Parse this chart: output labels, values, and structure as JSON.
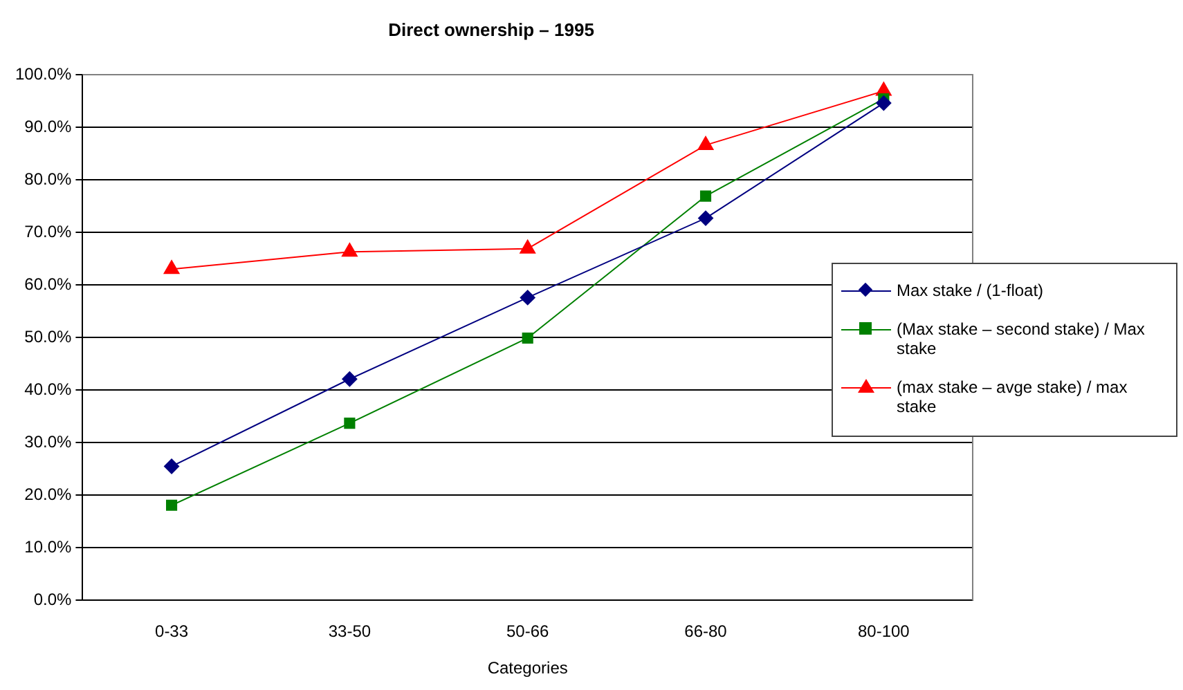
{
  "chart_data": {
    "type": "line",
    "title": "Direct ownership – 1995",
    "xlabel": "Categories",
    "categories": [
      "0-33",
      "33-50",
      "50-66",
      "66-80",
      "80-100"
    ],
    "series": [
      {
        "name": "Max stake / (1-float)",
        "color": "#000080",
        "marker": "diamond",
        "values": [
          25.5,
          42.1,
          57.6,
          72.7,
          94.6
        ]
      },
      {
        "name": "(Max stake – second stake) / Max stake",
        "color": "#008000",
        "marker": "square",
        "values": [
          18.1,
          33.7,
          49.9,
          76.9,
          95.4
        ]
      },
      {
        "name": "(max stake – avge stake) / max stake",
        "color": "#ff0000",
        "marker": "triangle",
        "values": [
          63.0,
          66.3,
          66.9,
          86.6,
          96.9
        ]
      }
    ],
    "ylim": [
      0,
      100
    ],
    "yticks": [
      {
        "value": 0,
        "label": "0.0%"
      },
      {
        "value": 10,
        "label": "10.0%"
      },
      {
        "value": 20,
        "label": "20.0%"
      },
      {
        "value": 30,
        "label": "30.0%"
      },
      {
        "value": 40,
        "label": "40.0%"
      },
      {
        "value": 50,
        "label": "50.0%"
      },
      {
        "value": 60,
        "label": "60.0%"
      },
      {
        "value": 70,
        "label": "70.0%"
      },
      {
        "value": 80,
        "label": "80.0%"
      },
      {
        "value": 90,
        "label": "90.0%"
      },
      {
        "value": 100,
        "label": "100.0%"
      }
    ],
    "grid": "y",
    "legend": "right",
    "line_style": "solid"
  }
}
